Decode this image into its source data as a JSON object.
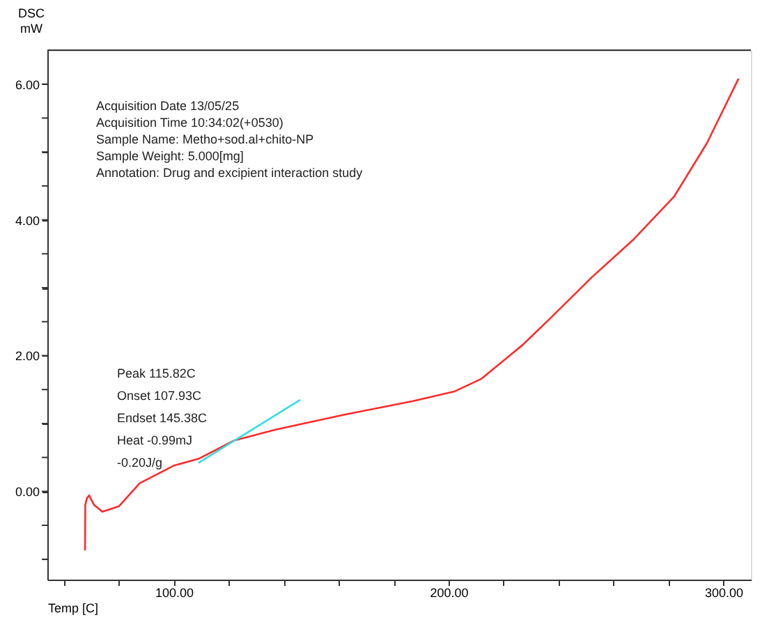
{
  "chart_data": {
    "type": "line",
    "xlabel": "Temp [C]",
    "ylabel": "DSC\nmW",
    "xlim": [
      54,
      310
    ],
    "ylim": [
      -1.3,
      6.5
    ],
    "xticks": [
      {
        "value": 60,
        "label": null
      },
      {
        "value": 80,
        "label": null
      },
      {
        "value": 100,
        "label": "100.00"
      },
      {
        "value": 120,
        "label": null
      },
      {
        "value": 140,
        "label": null
      },
      {
        "value": 160,
        "label": null
      },
      {
        "value": 180,
        "label": null
      },
      {
        "value": 200,
        "label": "200.00"
      },
      {
        "value": 220,
        "label": null
      },
      {
        "value": 240,
        "label": null
      },
      {
        "value": 260,
        "label": null
      },
      {
        "value": 280,
        "label": null
      },
      {
        "value": 300,
        "label": "300.00"
      }
    ],
    "yticks": [
      {
        "value": -1,
        "label": null
      },
      {
        "value": -0.5,
        "label": null
      },
      {
        "value": 0,
        "label": "0.00"
      },
      {
        "value": 0.5,
        "label": null
      },
      {
        "value": 1,
        "label": null
      },
      {
        "value": 1.5,
        "label": null
      },
      {
        "value": 2,
        "label": "2.00"
      },
      {
        "value": 2.5,
        "label": null
      },
      {
        "value": 3,
        "label": null
      },
      {
        "value": 3.5,
        "label": null
      },
      {
        "value": 4,
        "label": "4.00"
      },
      {
        "value": 4.5,
        "label": null
      },
      {
        "value": 5,
        "label": null
      },
      {
        "value": 5.5,
        "label": null
      },
      {
        "value": 6,
        "label": "6.00"
      }
    ],
    "grid": false,
    "marker": "none",
    "line_style": "solid",
    "series": [
      {
        "color": "#ff2a2a",
        "x": [
          67.7,
          67.8,
          68.4,
          69.2,
          71,
          74,
          80,
          87.6,
          100,
          109,
          122,
          137,
          162,
          187,
          202,
          212,
          227,
          237,
          252,
          267,
          282,
          294,
          305.5
        ],
        "values": [
          -0.87,
          -0.2,
          -0.1,
          -0.06,
          -0.2,
          -0.3,
          -0.22,
          0.12,
          0.38,
          0.48,
          0.75,
          0.91,
          1.13,
          1.33,
          1.47,
          1.66,
          2.16,
          2.55,
          3.15,
          3.7,
          4.34,
          5.13,
          6.08
        ]
      },
      {
        "color": "#33dde8",
        "x": [
          109,
          146
        ],
        "values": [
          0.42,
          1.35
        ]
      }
    ],
    "annotations": [
      "Acquisition Date 13/05/25",
      "Acquisition Time 10:34:02(+0530)",
      "Sample Name:    Metho+sod.al+chito-NP",
      "Sample Weight:  5.000[mg]",
      "Annotation:       Drug and excipient interaction study",
      "Peak          115.82C",
      "Onset         107.93C",
      "Endset        145.38C",
      "Heat           -0.99mJ",
      "                  -0.20J/g"
    ]
  }
}
